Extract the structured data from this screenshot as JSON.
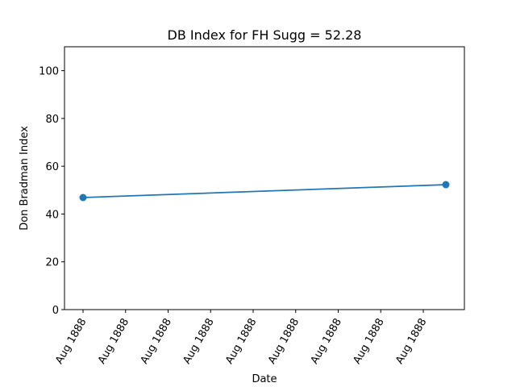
{
  "chart_data": {
    "type": "line",
    "title": "DB Index for FH Sugg = 52.28",
    "xlabel": "Date",
    "ylabel": "Don Bradman Index",
    "ylim": [
      0,
      110
    ],
    "yticks": [
      "0",
      "20",
      "40",
      "60",
      "80",
      "100"
    ],
    "xtick_labels": [
      "Aug 1888",
      "Aug 1888",
      "Aug 1888",
      "Aug 1888",
      "Aug 1888",
      "Aug 1888",
      "Aug 1888",
      "Aug 1888",
      "Aug 1888"
    ],
    "grid": false,
    "series": [
      {
        "color": "#1f77b4",
        "points": [
          {
            "x": "Aug 1888",
            "y": 46.9
          },
          {
            "x": "Aug 1888",
            "y": 52.28
          }
        ]
      }
    ]
  }
}
